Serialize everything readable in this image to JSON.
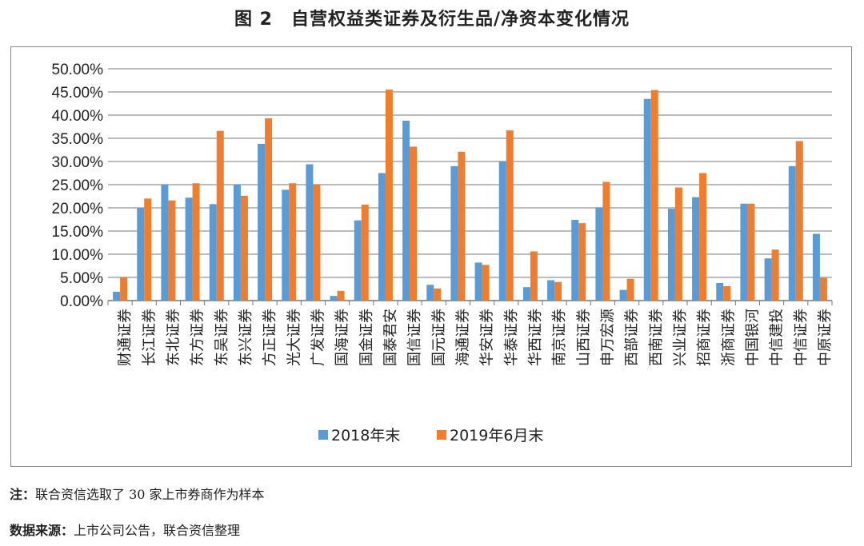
{
  "chart_data": {
    "type": "bar",
    "title": "图 2　自营权益类证券及衍生品/净资本变化情况",
    "categories": [
      "财通证券",
      "长江证券",
      "东北证券",
      "东方证券",
      "东吴证券",
      "东兴证券",
      "方正证券",
      "光大证券",
      "广发证券",
      "国海证券",
      "国金证券",
      "国泰君安",
      "国信证券",
      "国元证券",
      "海通证券",
      "华安证券",
      "华泰证券",
      "华西证券",
      "南京证券",
      "山西证券",
      "申万宏源",
      "西部证券",
      "西南证券",
      "兴业证券",
      "招商证券",
      "浙商证券",
      "中国银河",
      "中信建投",
      "中信证券",
      "中原证券"
    ],
    "series": [
      {
        "name": "2018年末",
        "color": "#5B9BD5",
        "values": [
          1.9,
          20.0,
          25.0,
          22.2,
          20.8,
          25.0,
          33.8,
          23.9,
          29.4,
          1.0,
          17.3,
          27.5,
          38.8,
          3.4,
          29.0,
          8.2,
          30.0,
          2.9,
          4.4,
          17.4,
          20.1,
          2.3,
          43.5,
          19.8,
          22.3,
          3.8,
          20.9,
          9.1,
          29.0,
          14.4
        ]
      },
      {
        "name": "2019年6月末",
        "color": "#ED7D31",
        "values": [
          5.0,
          22.0,
          21.6,
          25.3,
          36.6,
          22.6,
          39.3,
          25.3,
          25.0,
          2.1,
          20.7,
          45.5,
          33.2,
          2.6,
          32.1,
          7.7,
          36.7,
          10.6,
          4.0,
          16.7,
          25.6,
          4.7,
          45.4,
          24.4,
          27.5,
          3.1,
          20.9,
          11.0,
          34.4,
          4.9
        ]
      }
    ],
    "yticks": [
      "0.00%",
      "5.00%",
      "10.00%",
      "15.00%",
      "20.00%",
      "25.00%",
      "30.00%",
      "35.00%",
      "40.00%",
      "45.00%",
      "50.00%"
    ],
    "ylim": [
      0,
      50
    ],
    "xlabel": "",
    "ylabel": "",
    "grid": true,
    "legend": "bottom"
  },
  "notes": {
    "note_label": "注：",
    "note_text": "联合资信选取了 30 家上市券商作为样本",
    "source_label": "数据来源：",
    "source_text": "上市公司公告，联合资信整理"
  }
}
